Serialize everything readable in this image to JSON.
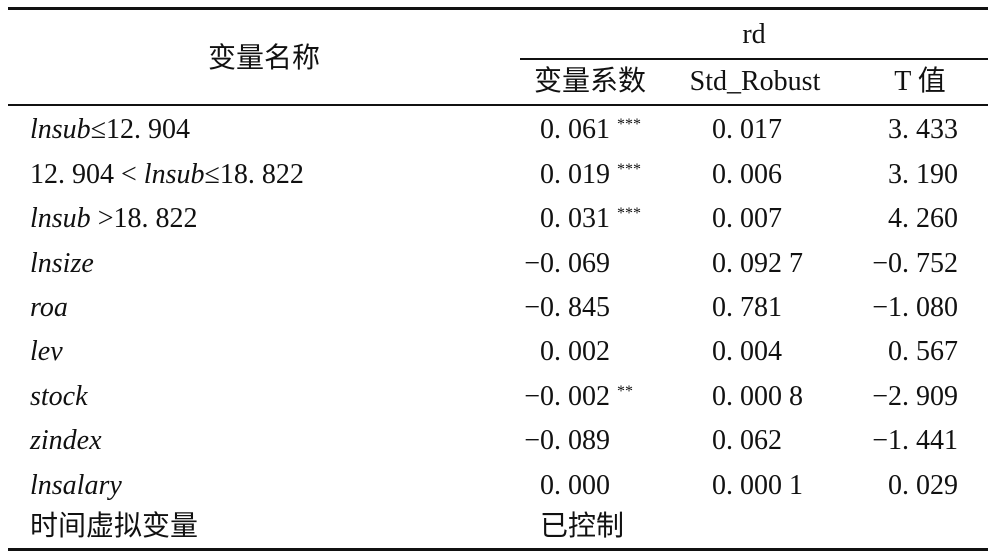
{
  "header": {
    "name": "变量名称",
    "group": "rd",
    "columns": [
      "变量系数",
      "Std_Robust",
      "T 值"
    ]
  },
  "rows": [
    {
      "label": [
        {
          "text": "lnsub",
          "italic": true
        },
        {
          "text": "≤12. 904"
        }
      ],
      "coef": "0. 061",
      "stars": "***",
      "std": "0. 017",
      "t": "3. 433"
    },
    {
      "label": [
        {
          "text": "12. 904 < "
        },
        {
          "text": "lnsub",
          "italic": true
        },
        {
          "text": "≤18. 822"
        }
      ],
      "coef": "0. 019",
      "stars": "***",
      "std": "0. 006",
      "t": "3. 190"
    },
    {
      "label": [
        {
          "text": "lnsub",
          "italic": true
        },
        {
          "text": " >18. 822"
        }
      ],
      "coef": "0. 031",
      "stars": "***",
      "std": "0. 007",
      "t": "4. 260"
    },
    {
      "label": [
        {
          "text": "lnsize",
          "italic": true
        }
      ],
      "coef": "−0. 069",
      "std": "0. 092 7",
      "t": "−0. 752"
    },
    {
      "label": [
        {
          "text": "roa",
          "italic": true
        }
      ],
      "coef": "−0. 845",
      "std": "0. 781",
      "t": "−1. 080"
    },
    {
      "label": [
        {
          "text": "lev",
          "italic": true
        }
      ],
      "coef": "0. 002",
      "std": "0. 004",
      "t": "0. 567"
    },
    {
      "label": [
        {
          "text": "stock",
          "italic": true
        }
      ],
      "coef": "−0. 002",
      "stars": "**",
      "std": "0. 000 8",
      "t": "−2. 909"
    },
    {
      "label": [
        {
          "text": "zindex",
          "italic": true
        }
      ],
      "coef": "−0. 089",
      "std": "0. 062",
      "t": "−1. 441"
    },
    {
      "label": [
        {
          "text": "lnsalary",
          "italic": true
        }
      ],
      "coef": "0. 000",
      "std": "0. 000 1",
      "t": "0. 029"
    },
    {
      "label": [
        {
          "text": "时间虚拟变量"
        }
      ],
      "coef": "已控制"
    }
  ]
}
